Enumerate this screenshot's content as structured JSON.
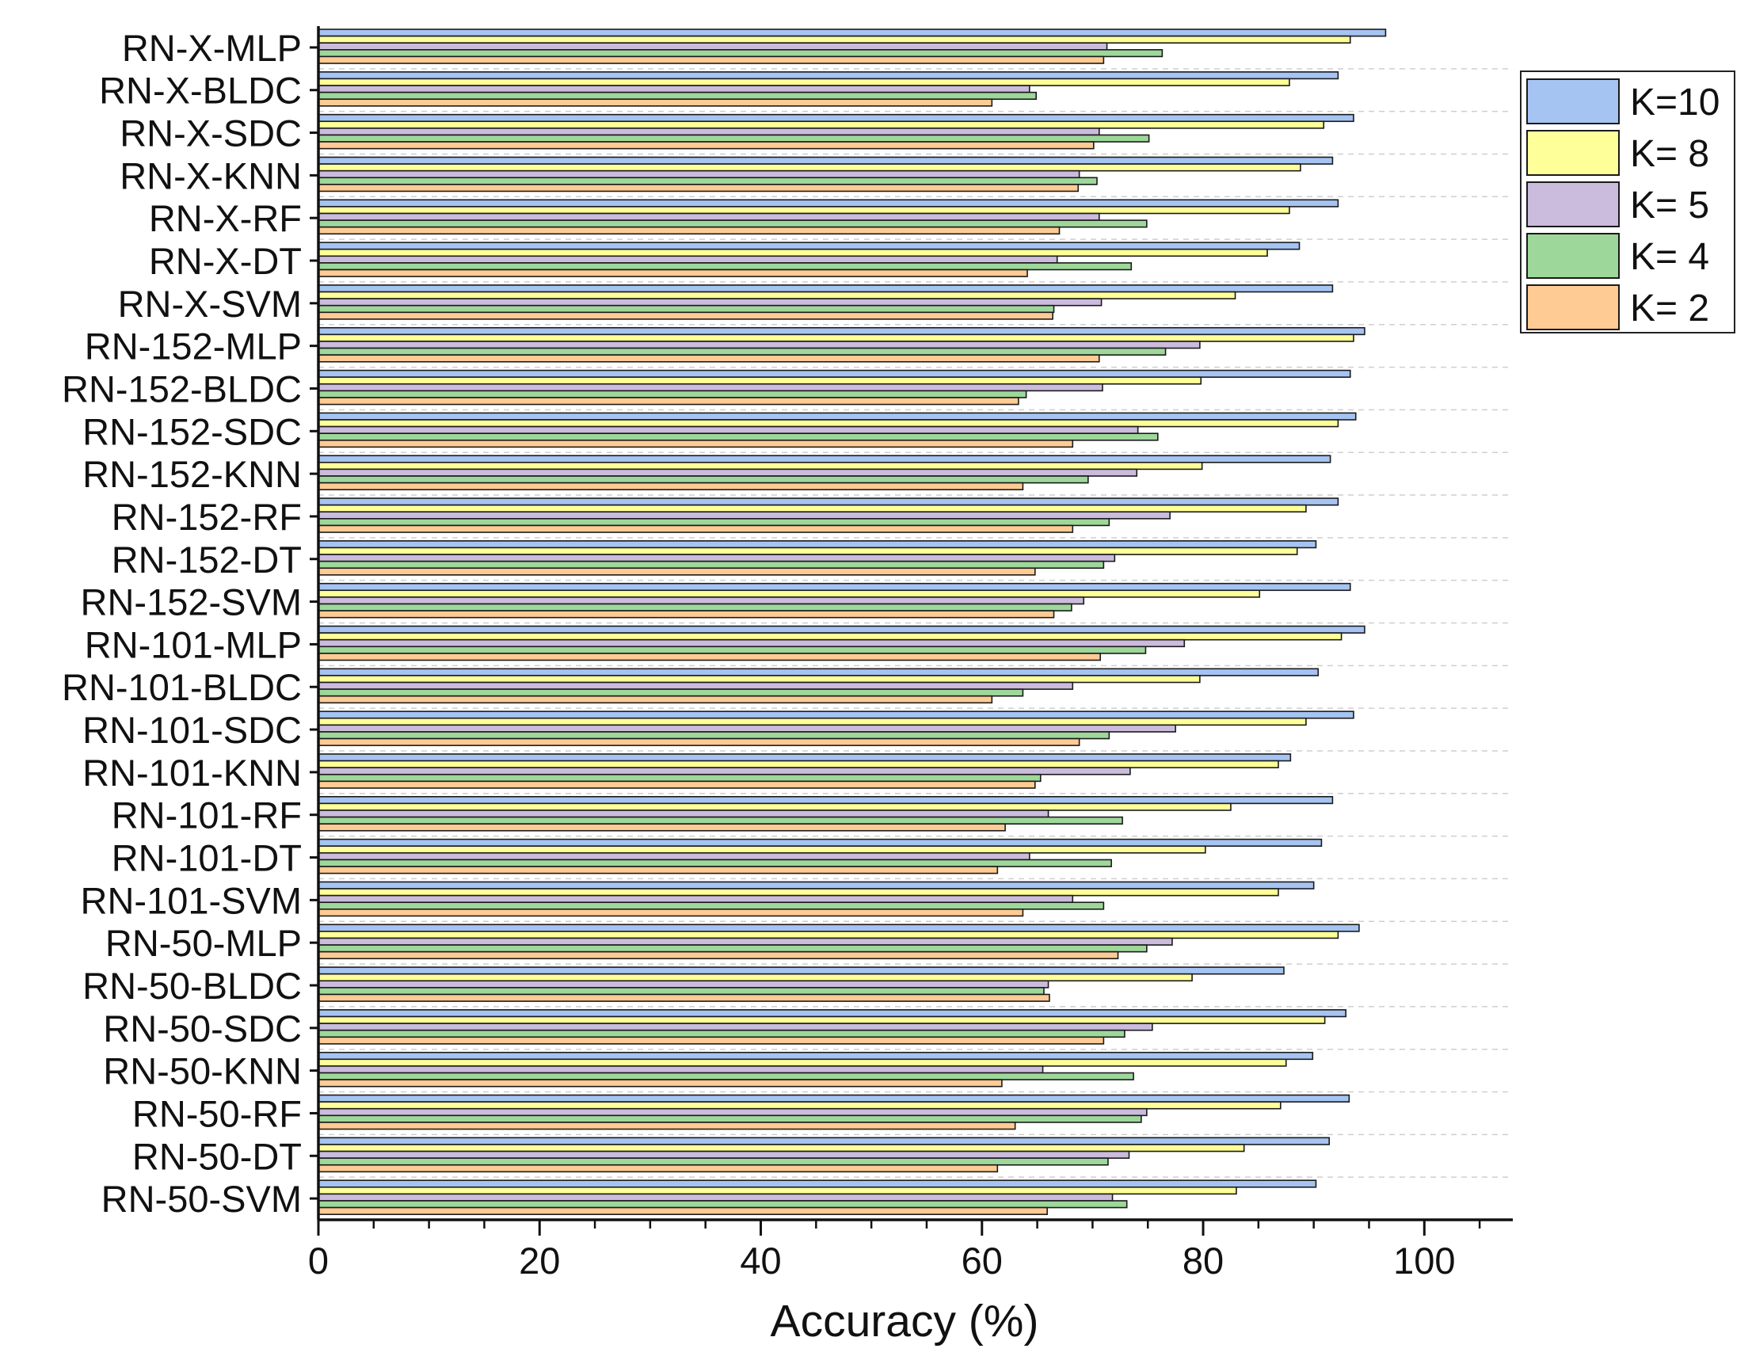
{
  "chart_data": {
    "type": "bar",
    "orientation": "horizontal",
    "title": "",
    "xlabel": "Accuracy (%)",
    "ylabel": "",
    "xlim": [
      0,
      108
    ],
    "xticks": [
      0,
      20,
      40,
      60,
      80,
      100
    ],
    "grid": "horizontal dashed",
    "legend_position": "top-right",
    "categories": [
      "RN-X-MLP",
      "RN-X-BLDC",
      "RN-X-SDC",
      "RN-X-KNN",
      "RN-X-RF",
      "RN-X-DT",
      "RN-X-SVM",
      "RN-152-MLP",
      "RN-152-BLDC",
      "RN-152-SDC",
      "RN-152-KNN",
      "RN-152-RF",
      "RN-152-DT",
      "RN-152-SVM",
      "RN-101-MLP",
      "RN-101-BLDC",
      "RN-101-SDC",
      "RN-101-KNN",
      "RN-101-RF",
      "RN-101-DT",
      "RN-101-SVM",
      "RN-50-MLP",
      "RN-50-BLDC",
      "RN-50-SDC",
      "RN-50-KNN",
      "RN-50-RF",
      "RN-50-DT",
      "RN-50-SVM"
    ],
    "series": [
      {
        "name": "K=10",
        "color": "#a6c4f2",
        "values": [
          96.5,
          92.2,
          93.6,
          91.7,
          92.2,
          88.7,
          91.7,
          94.6,
          93.3,
          93.8,
          91.5,
          92.2,
          90.2,
          93.3,
          94.6,
          90.4,
          93.6,
          87.9,
          91.7,
          90.7,
          90.0,
          94.1,
          87.3,
          92.9,
          89.9,
          93.2,
          91.4,
          90.2
        ]
      },
      {
        "name": "K= 8",
        "color": "#ffff99",
        "values": [
          93.3,
          87.8,
          90.9,
          88.8,
          87.8,
          85.8,
          82.9,
          93.6,
          79.8,
          92.2,
          79.9,
          89.3,
          88.5,
          85.1,
          92.5,
          79.7,
          89.3,
          86.8,
          82.5,
          80.2,
          86.8,
          92.2,
          79.0,
          91.0,
          87.5,
          87.0,
          83.7,
          83.0
        ]
      },
      {
        "name": "K= 5",
        "color": "#cbbbdd",
        "values": [
          71.3,
          64.3,
          70.6,
          68.8,
          70.6,
          66.8,
          70.8,
          79.7,
          70.9,
          74.1,
          74.0,
          77.0,
          72.0,
          69.2,
          78.3,
          68.2,
          77.5,
          73.4,
          66.0,
          64.3,
          68.2,
          77.2,
          66.0,
          75.4,
          65.5,
          74.9,
          73.3,
          71.8
        ]
      },
      {
        "name": "K= 4",
        "color": "#9ed79a",
        "values": [
          76.3,
          64.9,
          75.1,
          70.4,
          74.9,
          73.5,
          66.5,
          76.6,
          64.0,
          75.9,
          69.6,
          71.5,
          71.0,
          68.1,
          74.8,
          63.7,
          71.5,
          65.3,
          72.7,
          71.7,
          71.0,
          74.9,
          65.6,
          72.9,
          73.7,
          74.4,
          71.4,
          73.1
        ]
      },
      {
        "name": "K= 2",
        "color": "#ffcb94",
        "values": [
          71.0,
          60.9,
          70.1,
          68.7,
          67.0,
          64.1,
          66.4,
          70.6,
          63.3,
          68.2,
          63.7,
          68.2,
          64.8,
          66.5,
          70.7,
          60.9,
          68.8,
          64.8,
          62.1,
          61.4,
          63.7,
          72.3,
          66.1,
          71.0,
          61.8,
          63.0,
          61.4,
          65.9
        ]
      }
    ]
  }
}
